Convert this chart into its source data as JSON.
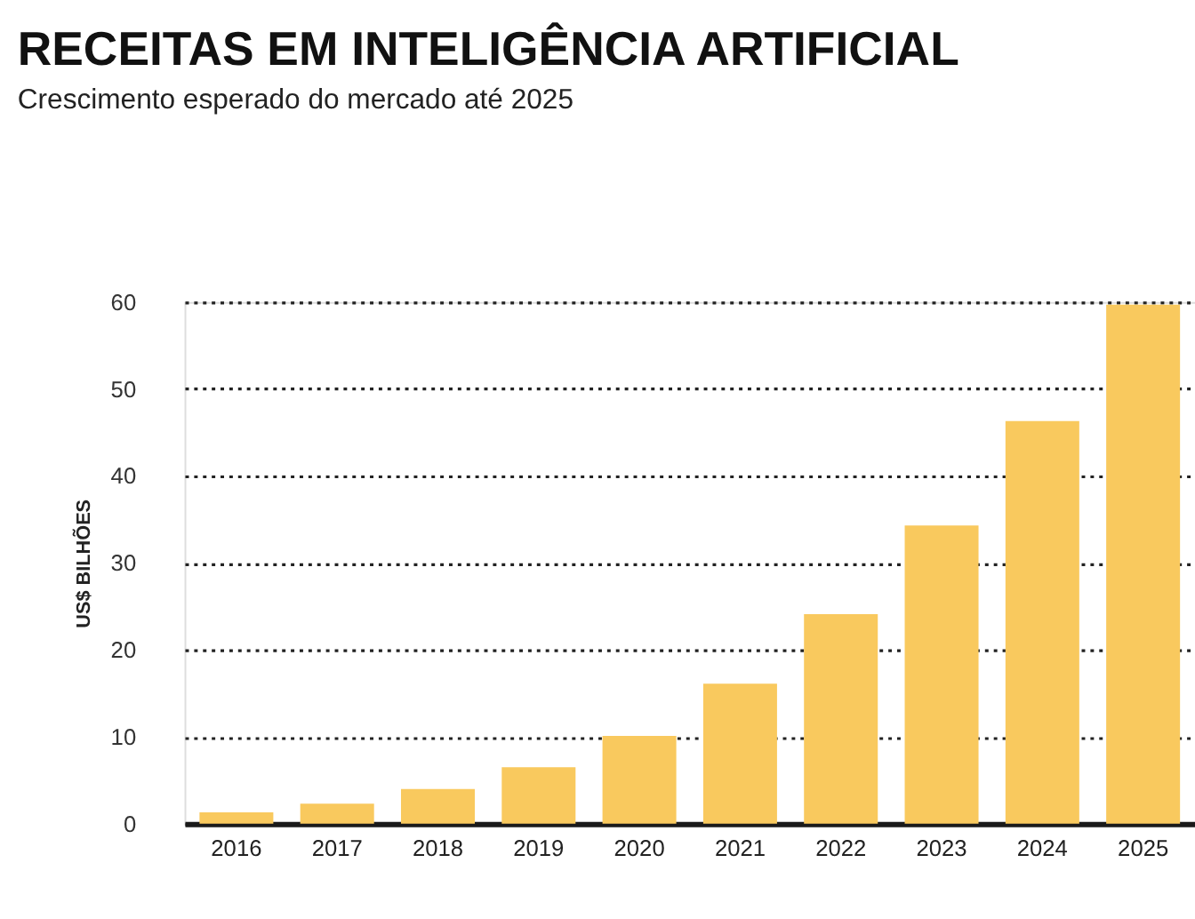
{
  "chart_data": {
    "type": "bar",
    "title": "RECEITAS EM INTELIGÊNCIA ARTIFICIAL",
    "subtitle": "Crescimento esperado do mercado até 2025",
    "ylabel": "US$ BILHÕES",
    "categories": [
      "2016",
      "2017",
      "2018",
      "2019",
      "2020",
      "2021",
      "2022",
      "2023",
      "2024",
      "2025"
    ],
    "values": [
      1.3,
      2.3,
      4.0,
      6.5,
      10.1,
      16.1,
      24.1,
      34.3,
      46.3,
      59.7
    ],
    "color": "#f9c95e",
    "ylim": [
      0,
      60
    ],
    "yticks": [
      0,
      10,
      20,
      30,
      40,
      50,
      60
    ],
    "grid": "y"
  }
}
